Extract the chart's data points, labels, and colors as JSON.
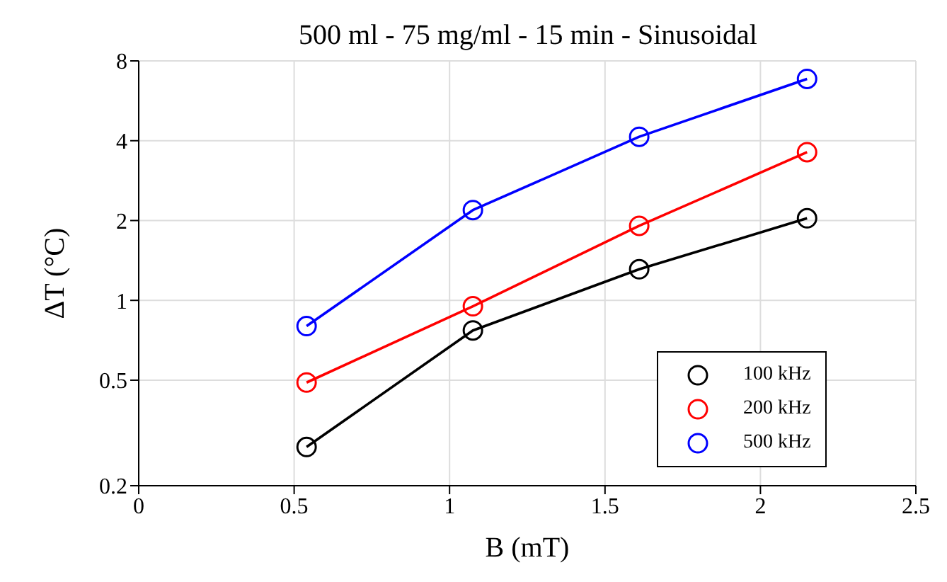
{
  "chart_data": {
    "type": "line",
    "title": "500 ml - 75 mg/ml - 15 min - Sinusoidal",
    "xlabel": "B (mT)",
    "ylabel": "ΔT (°C)",
    "x": [
      0.54,
      1.075,
      1.61,
      2.15
    ],
    "series": [
      {
        "name": "100 kHz",
        "color": "#000000",
        "values": [
          0.28,
          0.77,
          1.31,
          2.04
        ]
      },
      {
        "name": "200 kHz",
        "color": "#ff0000",
        "values": [
          0.49,
          0.95,
          1.91,
          3.62
        ]
      },
      {
        "name": "500 kHz",
        "color": "#0000ff",
        "values": [
          0.8,
          2.19,
          4.14,
          6.84
        ]
      }
    ],
    "xlim": [
      0,
      2.5
    ],
    "xticks": [
      0,
      0.5,
      1,
      1.5,
      2,
      2.5
    ],
    "ylim": [
      0.2,
      8
    ],
    "yticks": [
      0.2,
      0.5,
      1,
      2,
      4,
      8
    ],
    "log": "y",
    "grid": true,
    "legend": "bottom right",
    "marker": "circle",
    "line_style": "solid"
  }
}
